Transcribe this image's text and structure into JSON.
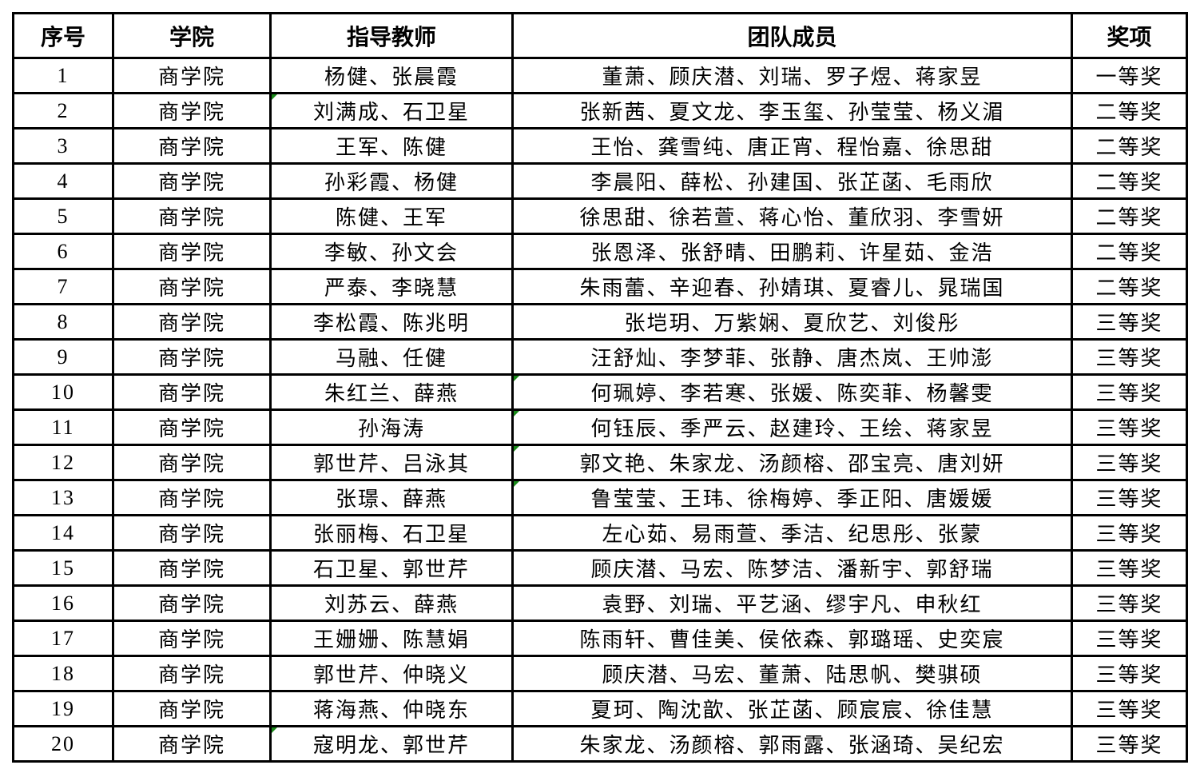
{
  "headers": [
    "序号",
    "学院",
    "指导教师",
    "团队成员",
    "奖项"
  ],
  "rows": [
    {
      "no": "1",
      "college": "商学院",
      "teachers": "杨健、张晨霞",
      "members": "董萧、顾庆潜、刘瑞、罗子煜、蒋家昱",
      "award": "一等奖"
    },
    {
      "no": "2",
      "college": "商学院",
      "teachers": "刘满成、石卫星",
      "members": "张新茜、夏文龙、李玉玺、孙莹莹、杨义湄",
      "award": "二等奖"
    },
    {
      "no": "3",
      "college": "商学院",
      "teachers": "王军、陈健",
      "members": "王怡、龚雪纯、唐正宵、程怡嘉、徐思甜",
      "award": "二等奖"
    },
    {
      "no": "4",
      "college": "商学院",
      "teachers": "孙彩霞、杨健",
      "members": "李晨阳、薛松、孙建国、张芷菡、毛雨欣",
      "award": "二等奖"
    },
    {
      "no": "5",
      "college": "商学院",
      "teachers": "陈健、王军",
      "members": "徐思甜、徐若萱、蒋心怡、董欣羽、李雪妍",
      "award": "二等奖"
    },
    {
      "no": "6",
      "college": "商学院",
      "teachers": "李敏、孙文会",
      "members": "张恩泽、张舒晴、田鹏莉、许星茹、金浩",
      "award": "二等奖"
    },
    {
      "no": "7",
      "college": "商学院",
      "teachers": "严泰、李晓慧",
      "members": "朱雨蕾、辛迎春、孙婧琪、夏睿儿、晁瑞国",
      "award": "二等奖"
    },
    {
      "no": "8",
      "college": "商学院",
      "teachers": "李松霞、陈兆明",
      "members": "张垲玥、万紫娴、夏欣艺、刘俊彤",
      "award": "三等奖"
    },
    {
      "no": "9",
      "college": "商学院",
      "teachers": "马融、任健",
      "members": "汪舒灿、李梦菲、张静、唐杰岚、王帅澎",
      "award": "三等奖"
    },
    {
      "no": "10",
      "college": "商学院",
      "teachers": "朱红兰、薛燕",
      "members": "何珮婷、李若寒、张媛、陈奕菲、杨馨雯",
      "award": "三等奖"
    },
    {
      "no": "11",
      "college": "商学院",
      "teachers": "孙海涛",
      "members": "何钰辰、季严云、赵建玲、王绘、蒋家昱",
      "award": "三等奖"
    },
    {
      "no": "12",
      "college": "商学院",
      "teachers": "郭世芹、吕泳其",
      "members": "郭文艳、朱家龙、汤颜榕、邵宝亮、唐刘妍",
      "award": "三等奖"
    },
    {
      "no": "13",
      "college": "商学院",
      "teachers": "张璟、薛燕",
      "members": "鲁莹莹、王玮、徐梅婷、季正阳、唐媛媛",
      "award": "三等奖"
    },
    {
      "no": "14",
      "college": "商学院",
      "teachers": "张丽梅、石卫星",
      "members": "左心茹、易雨萱、季洁、纪思彤、张蒙",
      "award": "三等奖"
    },
    {
      "no": "15",
      "college": "商学院",
      "teachers": "石卫星、郭世芹",
      "members": "顾庆潜、马宏、陈梦洁、潘新宇、郭舒瑞",
      "award": "三等奖"
    },
    {
      "no": "16",
      "college": "商学院",
      "teachers": "刘苏云、薛燕",
      "members": "袁野、刘瑞、平艺涵、缪宇凡、申秋红",
      "award": "三等奖"
    },
    {
      "no": "17",
      "college": "商学院",
      "teachers": "王姗姗、陈慧娟",
      "members": "陈雨轩、曹佳美、侯依森、郭璐瑶、史奕宸",
      "award": "三等奖"
    },
    {
      "no": "18",
      "college": "商学院",
      "teachers": "郭世芹、仲晓义",
      "members": "顾庆潜、马宏、董萧、陆思帆、樊骐硕",
      "award": "三等奖"
    },
    {
      "no": "19",
      "college": "商学院",
      "teachers": "蒋海燕、仲晓东",
      "members": "夏珂、陶沈歆、张芷菡、顾宸宸、徐佳慧",
      "award": "三等奖"
    },
    {
      "no": "20",
      "college": "商学院",
      "teachers": "寇明龙、郭世芹",
      "members": "朱家龙、汤颜榕、郭雨露、张涵琦、吴纪宏",
      "award": "三等奖"
    }
  ],
  "comment_flags": {
    "teachers": [
      "2",
      "20"
    ],
    "members": [
      "10",
      "11",
      "12",
      "13"
    ]
  },
  "colors": {
    "comment_flag": "#1a8a1a",
    "border": "#000000"
  }
}
